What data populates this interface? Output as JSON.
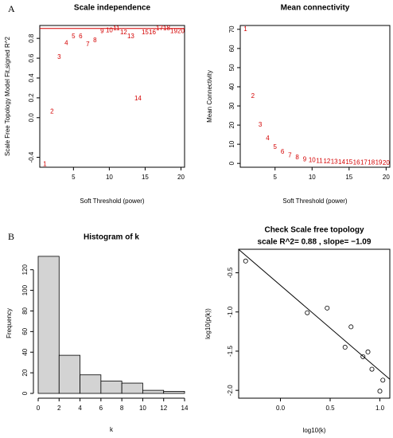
{
  "chart_data": [
    {
      "type": "scatter",
      "marker": "label",
      "panel_label": "A",
      "title": "Scale independence",
      "x_label": "Soft Threshold (power)",
      "y_label": "Scale Free Topology Model Fit,signed R^2",
      "x": [
        1,
        2,
        3,
        4,
        5,
        6,
        7,
        8,
        9,
        10,
        11,
        12,
        13,
        14,
        15,
        16,
        17,
        18,
        19,
        20
      ],
      "values": [
        -0.47,
        0.06,
        0.61,
        0.75,
        0.82,
        0.82,
        0.74,
        0.78,
        0.87,
        0.88,
        0.9,
        0.86,
        0.82,
        0.19,
        0.86,
        0.86,
        0.9,
        0.9,
        0.87,
        0.87
      ],
      "color": "#d40000",
      "hline": 0.9,
      "hline_color": "#d40000",
      "xlim": [
        0.3,
        20.5
      ],
      "xticks": [
        5,
        10,
        15,
        20
      ],
      "ylim": [
        -0.5,
        0.93
      ],
      "yticks": [
        -0.4,
        {
          "value": 0,
          "label": "0.0"
        },
        0.2,
        0.4,
        0.6,
        0.8
      ],
      "box": true
    },
    {
      "type": "scatter",
      "marker": "label",
      "title": "Mean connectivity",
      "x_label": "Soft Threshold (power)",
      "y_label": "Mean Connectivity",
      "x": [
        1,
        2,
        3,
        4,
        5,
        6,
        7,
        8,
        9,
        10,
        11,
        12,
        13,
        14,
        15,
        16,
        17,
        18,
        19,
        20
      ],
      "values": [
        70,
        35,
        20,
        13,
        8.5,
        6,
        4,
        3,
        2,
        1.5,
        1.2,
        1,
        0.8,
        0.6,
        0.5,
        0.4,
        0.35,
        0.3,
        0.25,
        0.2
      ],
      "color": "#d40000",
      "xlim": [
        0.3,
        20.5
      ],
      "xticks": [
        5,
        10,
        15,
        20
      ],
      "ylim": [
        -2,
        72
      ],
      "yticks": [
        0,
        10,
        20,
        30,
        40,
        50,
        60,
        70
      ],
      "box": true
    },
    {
      "type": "histogram",
      "panel_label": "B",
      "title": "Histogram of k",
      "x_label": "k",
      "y_label": "Frequency",
      "bins": [
        0,
        2,
        4,
        6,
        8,
        10,
        12,
        14
      ],
      "values": [
        133,
        37,
        18,
        12,
        10,
        3,
        2
      ],
      "color": "#d3d3d3",
      "xlim": [
        0,
        14
      ],
      "xticks": [
        0,
        2,
        4,
        6,
        8,
        10,
        12,
        14
      ],
      "ylim": [
        0,
        136
      ],
      "yticks": [
        0,
        20,
        40,
        60,
        80,
        100,
        120
      ],
      "box": false
    },
    {
      "type": "scatter",
      "marker": "circle",
      "title": "Check Scale free topology",
      "subtitle": "scale R^2= 0.88 , slope= −1.09",
      "x_label": "log10(k)",
      "y_label": "log10(p(k))",
      "x": [
        -0.35,
        0.27,
        0.47,
        0.65,
        0.71,
        0.83,
        0.88,
        0.92,
        1.0,
        1.03
      ],
      "values": [
        -0.35,
        -1.01,
        -0.95,
        -1.45,
        -1.19,
        -1.57,
        -1.51,
        -1.73,
        -2.01,
        -1.87
      ],
      "color": "#000000",
      "fit_line": {
        "intercept": -0.66,
        "slope": -1.09
      },
      "xlim": [
        -0.42,
        1.1
      ],
      "xticks": [
        {
          "value": 0,
          "label": "0.0"
        },
        0.5,
        {
          "value": 1,
          "label": "1.0"
        }
      ],
      "ylim": [
        -2.1,
        -0.2
      ],
      "yticks": [
        {
          "value": -2,
          "label": "-2.0"
        },
        -1.5,
        {
          "value": -1,
          "label": "-1.0"
        },
        -0.5
      ],
      "box": true
    }
  ]
}
